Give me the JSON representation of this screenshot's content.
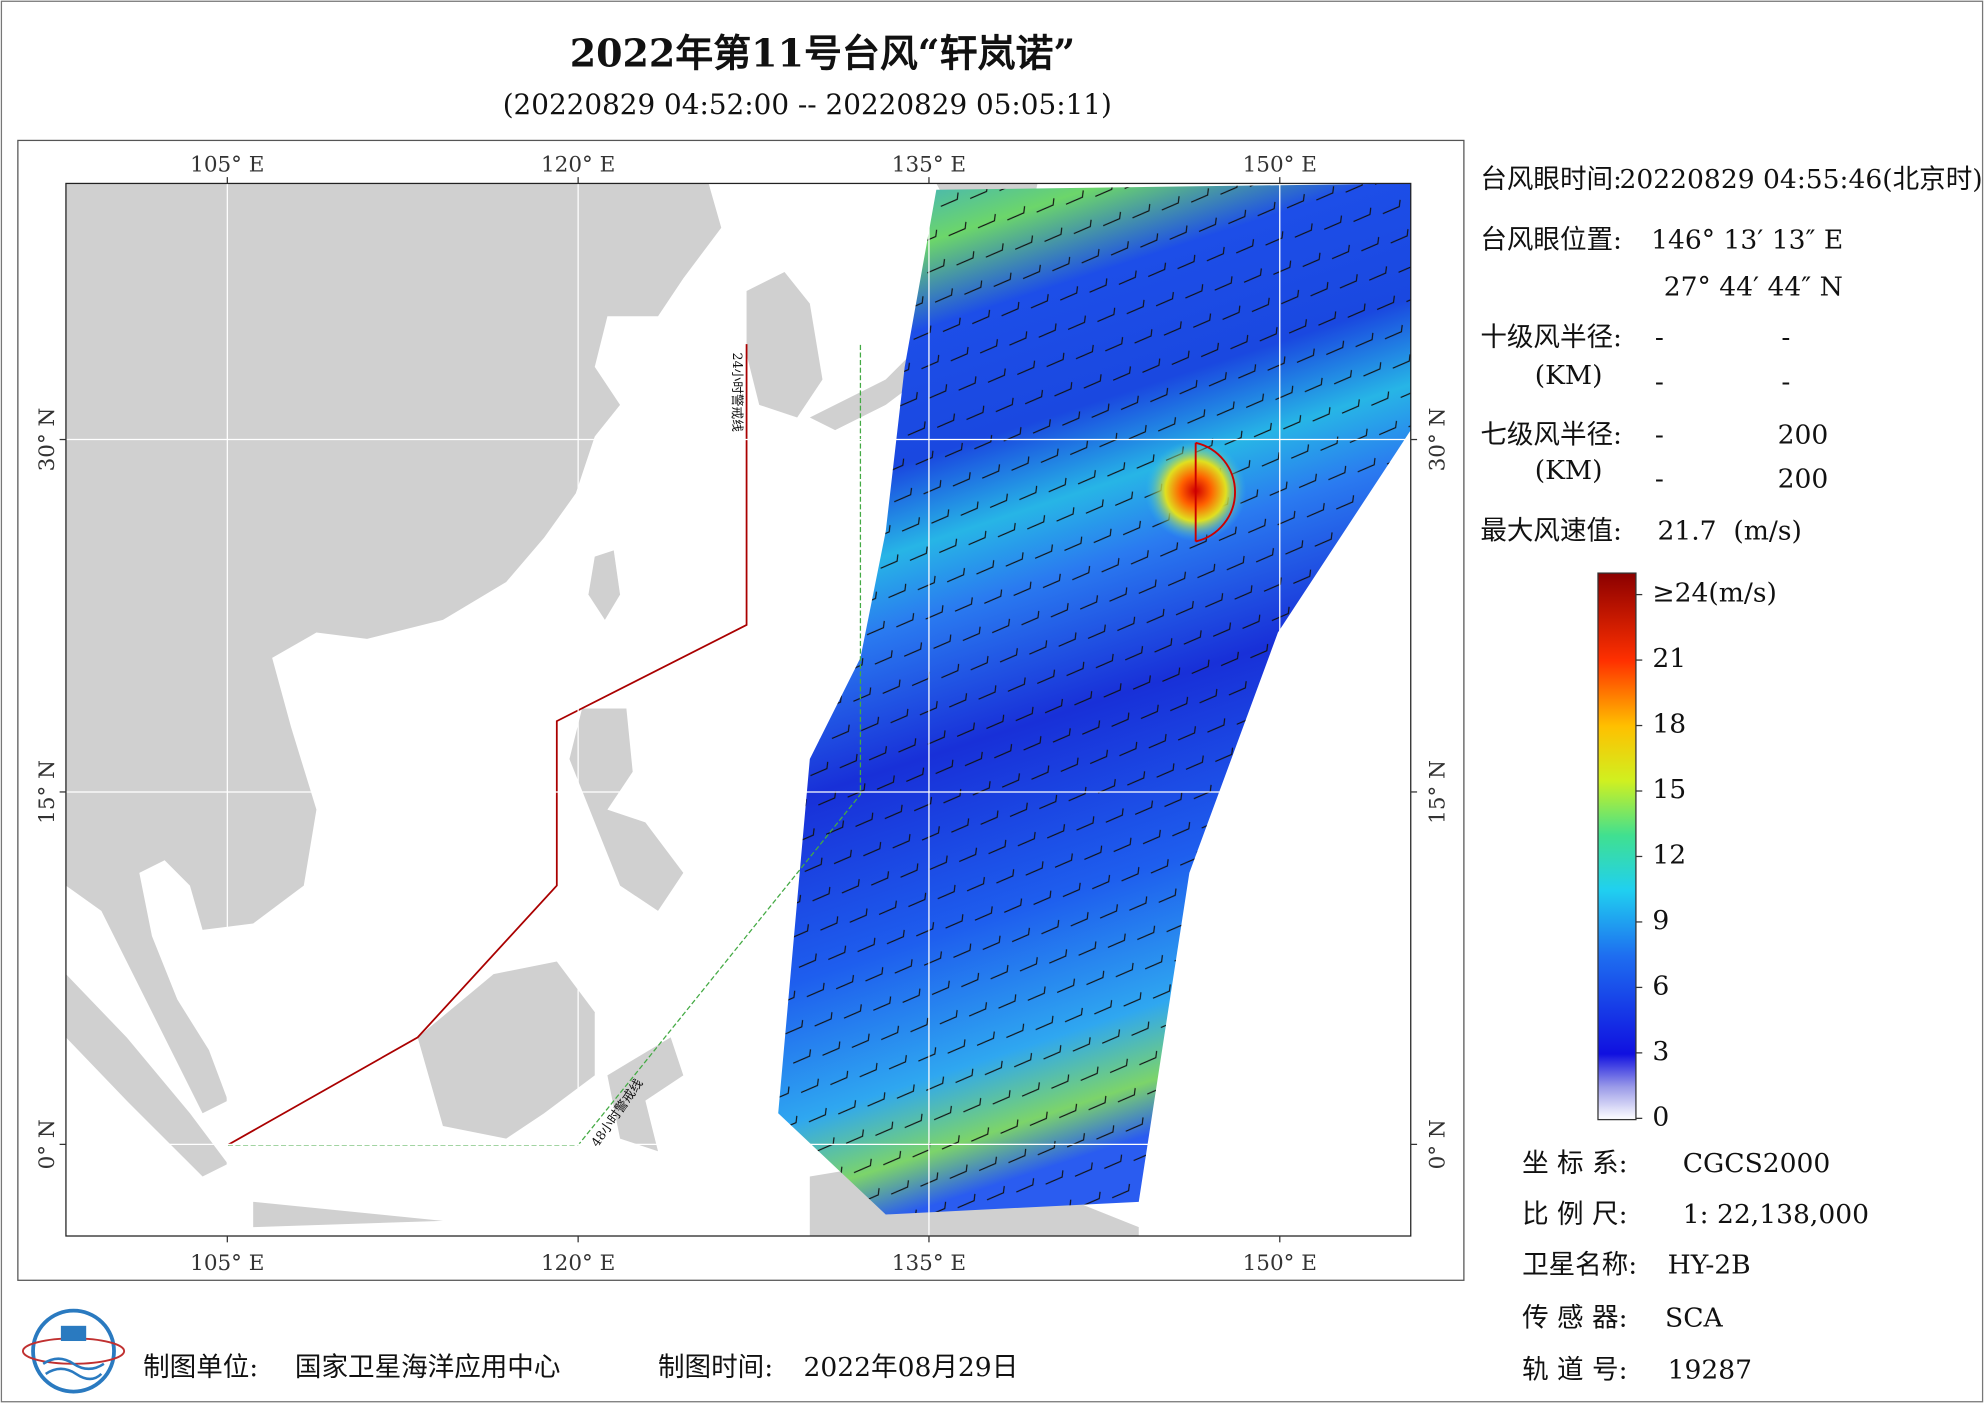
{
  "title": "2022年第11号台风“轩岚诺”",
  "subtitle": "(20220829 04:52:00 -- 20220829 05:05:11)",
  "map": {
    "xlim": [
      98.1,
      155.6
    ],
    "ylim": [
      -3.9,
      40.9
    ],
    "lon_ticks": [
      {
        "value": 105,
        "label": "105° E"
      },
      {
        "value": 120,
        "label": "120° E"
      },
      {
        "value": 135,
        "label": "135° E"
      },
      {
        "value": 150,
        "label": "150° E"
      }
    ],
    "lat_ticks": [
      {
        "value": 0,
        "label": "0° N"
      },
      {
        "value": 15,
        "label": "15° N"
      },
      {
        "value": 30,
        "label": "30° N"
      }
    ],
    "line_labels": [
      "24小时警戒线",
      "48小时警戒线"
    ]
  },
  "info": {
    "eye_time_label": "台风眼时间:",
    "eye_time": "20220829 04:55:46(北京时)",
    "eye_pos_label": "台风眼位置:",
    "eye_lon": "146° 13′ 13″ E",
    "eye_lat": "27° 44′ 44″ N",
    "r10_label": "十级风半径:",
    "r10_unit": "(KM)",
    "r10": [
      [
        "-",
        "-"
      ],
      [
        "-",
        "-"
      ]
    ],
    "r7_label": "七级风半径:",
    "r7_unit": "(KM)",
    "r7": [
      [
        "-",
        200
      ],
      [
        "-",
        200
      ]
    ],
    "max_wind_label": "最大风速值:",
    "max_wind": 21.7,
    "max_wind_unit": "(m/s)"
  },
  "colorbar": {
    "range": [
      0,
      24
    ],
    "ticks": [
      {
        "value": 24,
        "label": "≥24(m/s)"
      },
      21,
      18,
      15,
      12,
      9,
      6,
      3,
      0
    ]
  },
  "meta": [
    {
      "label": "坐 标 系:",
      "value": "CGCS2000"
    },
    {
      "label": "比 例 尺:",
      "value": "1: 22,138,000"
    },
    {
      "label": "卫星名称:",
      "value": "HY-2B"
    },
    {
      "label": "传 感 器:",
      "value": "SCA"
    },
    {
      "label": "轨 道 号:",
      "value": "19287"
    }
  ],
  "footer": {
    "unit_label": "制图单位:",
    "unit": "国家卫星海洋应用中心",
    "time_label": "制图时间:",
    "time": "2022年08月29日"
  }
}
